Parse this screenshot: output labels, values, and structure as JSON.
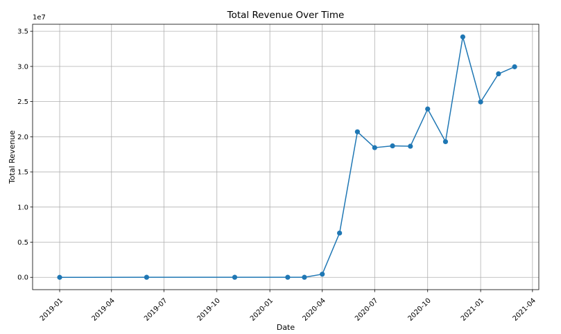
{
  "chart_data": {
    "type": "line",
    "title": "Total Revenue Over Time",
    "xlabel": "Date",
    "ylabel": "Total Revenue",
    "y_offset_label": "1e7",
    "y_scale": 10000000,
    "grid": true,
    "series_color": "#1f77b4",
    "xlim": [
      "2018-11-15",
      "2021-04-12"
    ],
    "ylim": [
      -1750000,
      36000000
    ],
    "x_ticks": [
      {
        "date": "2019-01-01",
        "label": "2019-01"
      },
      {
        "date": "2019-04-01",
        "label": "2019-04"
      },
      {
        "date": "2019-07-01",
        "label": "2019-07"
      },
      {
        "date": "2019-10-01",
        "label": "2019-10"
      },
      {
        "date": "2020-01-01",
        "label": "2020-01"
      },
      {
        "date": "2020-04-01",
        "label": "2020-04"
      },
      {
        "date": "2020-07-01",
        "label": "2020-07"
      },
      {
        "date": "2020-10-01",
        "label": "2020-10"
      },
      {
        "date": "2021-01-01",
        "label": "2021-01"
      },
      {
        "date": "2021-04-01",
        "label": "2021-04"
      }
    ],
    "y_ticks": [
      {
        "value": 0,
        "label": "0.0"
      },
      {
        "value": 5000000,
        "label": "0.5"
      },
      {
        "value": 10000000,
        "label": "1.0"
      },
      {
        "value": 15000000,
        "label": "1.5"
      },
      {
        "value": 20000000,
        "label": "2.0"
      },
      {
        "value": 25000000,
        "label": "2.5"
      },
      {
        "value": 30000000,
        "label": "3.0"
      },
      {
        "value": 35000000,
        "label": "3.5"
      }
    ],
    "series": [
      {
        "x": [
          "2019-01-01",
          "2019-06-01",
          "2019-11-01",
          "2020-02-01",
          "2020-03-01",
          "2020-04-01",
          "2020-05-01",
          "2020-06-01",
          "2020-07-01",
          "2020-08-01",
          "2020-09-01",
          "2020-10-01",
          "2020-11-01",
          "2020-12-01",
          "2021-01-01",
          "2021-02-01",
          "2021-03-01"
        ],
        "values": [
          0,
          10000,
          10000,
          10000,
          10000,
          450000,
          6300000,
          20700000,
          18450000,
          18700000,
          18650000,
          23950000,
          19300000,
          34200000,
          24950000,
          28950000,
          29950000
        ]
      }
    ]
  }
}
